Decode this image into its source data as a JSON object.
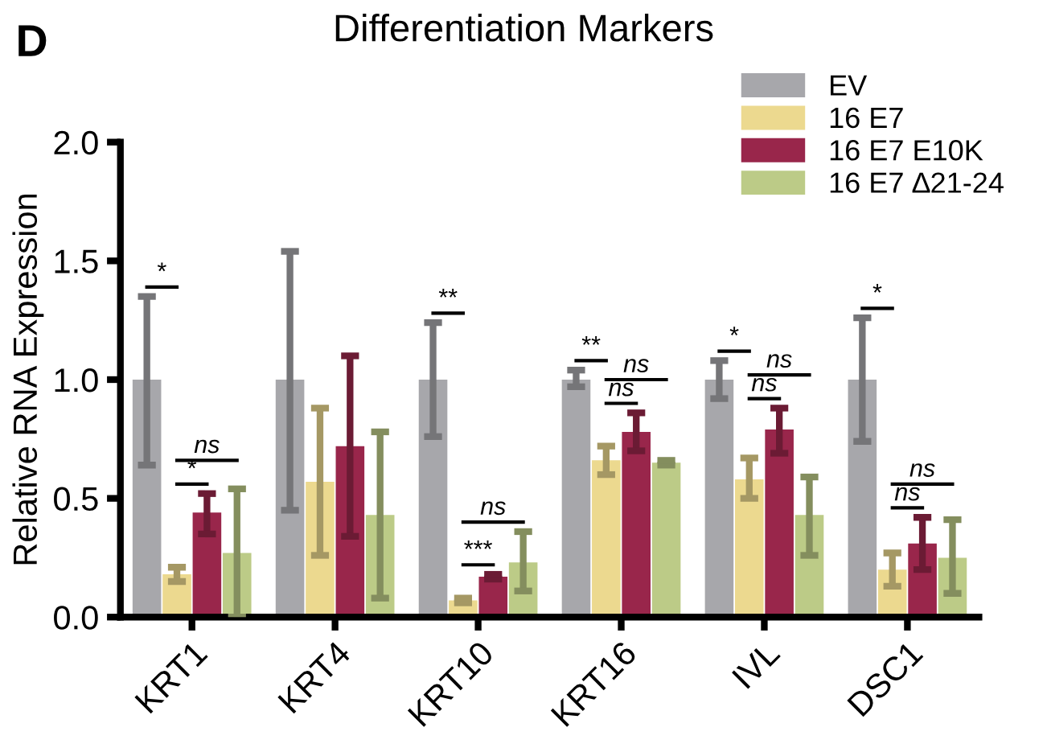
{
  "chart_data": {
    "type": "bar",
    "title": "Differentiation Markers",
    "ylabel": "Relative RNA Expression",
    "categories": [
      "KRT1",
      "KRT4",
      "KRT10",
      "KRT16",
      "IVL",
      "DSC1"
    ],
    "series": [
      {
        "name": "EV",
        "color": "#a7a7ab",
        "values": [
          1.0,
          1.0,
          1.0,
          1.0,
          1.0,
          1.0
        ],
        "errors": [
          [
            0.64,
            1.35
          ],
          [
            0.45,
            1.54
          ],
          [
            0.76,
            1.24
          ],
          [
            0.97,
            1.04
          ],
          [
            0.92,
            1.08
          ],
          [
            0.74,
            1.26
          ]
        ]
      },
      {
        "name": "16 E7",
        "color": "#ecd98f",
        "values": [
          0.18,
          0.57,
          0.07,
          0.66,
          0.58,
          0.2
        ],
        "errors": [
          [
            0.15,
            0.21
          ],
          [
            0.26,
            0.88
          ],
          [
            0.06,
            0.08
          ],
          [
            0.6,
            0.72
          ],
          [
            0.5,
            0.67
          ],
          [
            0.13,
            0.27
          ]
        ]
      },
      {
        "name": "16 E7 E10K",
        "color": "#99264b",
        "values": [
          0.44,
          0.72,
          0.17,
          0.78,
          0.79,
          0.31
        ],
        "errors": [
          [
            0.35,
            0.52
          ],
          [
            0.34,
            1.1
          ],
          [
            0.16,
            0.18
          ],
          [
            0.7,
            0.86
          ],
          [
            0.69,
            0.88
          ],
          [
            0.2,
            0.42
          ]
        ]
      },
      {
        "name": "16 E7 ∆21-24",
        "color": "#bccb87",
        "values": [
          0.27,
          0.43,
          0.23,
          0.65,
          0.43,
          0.25
        ],
        "errors": [
          [
            0.0,
            0.54
          ],
          [
            0.08,
            0.78
          ],
          [
            0.11,
            0.36
          ],
          [
            0.64,
            0.66
          ],
          [
            0.26,
            0.59
          ],
          [
            0.1,
            0.41
          ]
        ]
      }
    ],
    "ylim": [
      0,
      2.0
    ],
    "yticks": [
      {
        "value": 0,
        "label": "0.0"
      },
      {
        "value": 0.5,
        "label": "0.5"
      },
      {
        "value": 1.0,
        "label": "1.0"
      },
      {
        "value": 1.5,
        "label": "1.5"
      },
      {
        "value": 2.0,
        "label": "2.0"
      }
    ],
    "grid": false,
    "legend": "top right",
    "annotations": [
      "D",
      "*",
      "*",
      "ns",
      "**",
      "***",
      "ns",
      "**",
      "ns",
      "ns",
      "*",
      "ns",
      "ns",
      "*",
      "ns",
      "ns"
    ]
  }
}
